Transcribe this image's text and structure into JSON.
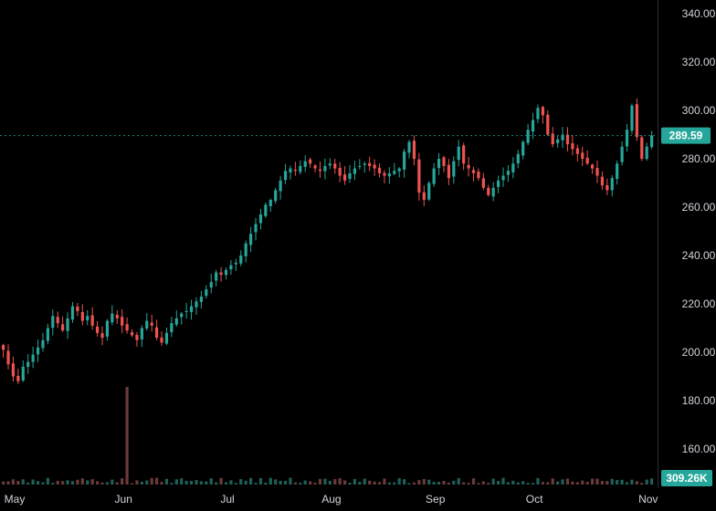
{
  "chart_data": {
    "type": "candlestick",
    "y_axis": {
      "range": [
        150,
        345
      ],
      "ticks": [
        {
          "value": 160,
          "label": "160.00"
        },
        {
          "value": 180,
          "label": "180.00"
        },
        {
          "value": 200,
          "label": "200.00"
        },
        {
          "value": 220,
          "label": "220.00"
        },
        {
          "value": 240,
          "label": "240.00"
        },
        {
          "value": 260,
          "label": "260.00"
        },
        {
          "value": 280,
          "label": "280.00"
        },
        {
          "value": 300,
          "label": "300.00"
        },
        {
          "value": 320,
          "label": "320.00"
        },
        {
          "value": 340,
          "label": "340.00"
        }
      ],
      "position": "right"
    },
    "x_axis": {
      "labels": [
        {
          "label": "May",
          "bar": 0
        },
        {
          "label": "Jun",
          "bar": 22
        },
        {
          "label": "Jul",
          "bar": 43
        },
        {
          "label": "Aug",
          "bar": 64
        },
        {
          "label": "Sep",
          "bar": 85
        },
        {
          "label": "Oct",
          "bar": 105
        },
        {
          "label": "Nov",
          "bar": 128
        }
      ]
    },
    "last_price": {
      "value": 289.59,
      "label": "289.59"
    },
    "last_volume": {
      "label": "309.26K"
    },
    "colors": {
      "up": "#26a69a",
      "down": "#ef5350",
      "volume_up": "#1f5f58",
      "volume_down": "#6b3a3a",
      "price_badge": "#26a69a",
      "volume_badge": "#26a69a",
      "axis_text": "#d1d4dc",
      "background": "#000000"
    },
    "grid": false,
    "closes": [
      201,
      195,
      190,
      188,
      194,
      196,
      199,
      202,
      205,
      210,
      215,
      212,
      209,
      214,
      219,
      217,
      213,
      215,
      211,
      208,
      206,
      213,
      216,
      214,
      211,
      209,
      207,
      205,
      210,
      213,
      211,
      206,
      204,
      208,
      212,
      214,
      216,
      217,
      219,
      221,
      223,
      226,
      229,
      233,
      232,
      234,
      236,
      237,
      240,
      245,
      249,
      253,
      257,
      261,
      263,
      267,
      271,
      275,
      276,
      275,
      277,
      279,
      278,
      276,
      275,
      277,
      278,
      276,
      273,
      271,
      274,
      276,
      277,
      278,
      277,
      276,
      274,
      273,
      274,
      275,
      276,
      283,
      287,
      280,
      266,
      263,
      270,
      276,
      280,
      277,
      272,
      279,
      285,
      278,
      276,
      274,
      272,
      268,
      265,
      268,
      271,
      273,
      275,
      278,
      282,
      287,
      292,
      296,
      301,
      298,
      290,
      286,
      288,
      290,
      286,
      284,
      282,
      280,
      278,
      276,
      273,
      269,
      267,
      272,
      278,
      285,
      292,
      302,
      289,
      280,
      285,
      289.59
    ],
    "volume": {
      "spike": {
        "bar": 25,
        "value": 8400000
      },
      "typical": 300000
    }
  }
}
